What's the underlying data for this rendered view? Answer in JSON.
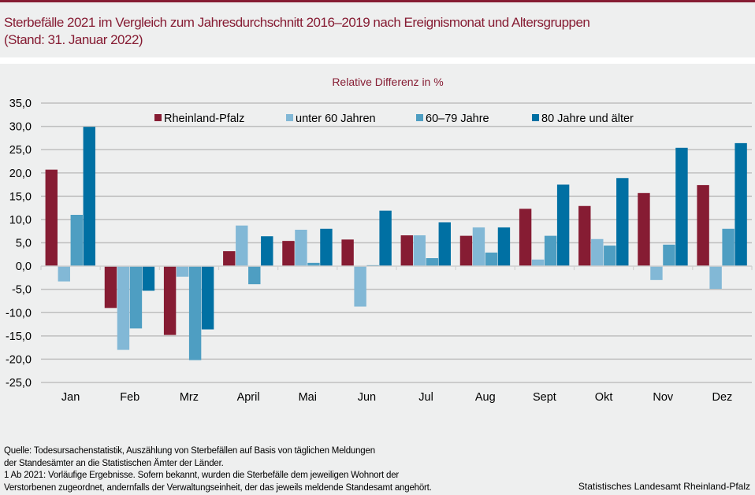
{
  "header": {
    "title_line1": "Sterbefälle 2021 im Vergleich zum Jahresdurchschnitt 2016–2019 nach Ereignismonat und Altersgruppen",
    "title_line2": "(Stand: 31. Januar 2022)"
  },
  "footer": {
    "source_lines": [
      "Quelle: Todesursachenstatistik, Auszählung von Sterbefällen auf Basis von täglichen Meldungen",
      "der Standesämter an die Statistischen Ämter der Länder.",
      "1 Ab 2021: Vorläufige Ergebnisse. Sofern bekannt, wurden die Sterbefälle dem jeweiligen Wohnort der",
      "Verstorbenen zugeordnet, andernfalls der Verwaltungseinheit, der das jeweils meldende Standesamt angehört."
    ],
    "credit": "Statistisches Landesamt Rheinland-Pfalz"
  },
  "chart_data": {
    "type": "bar",
    "title": "Relative Differenz in %",
    "xlabel": "",
    "ylabel": "",
    "ylim": [
      -25,
      35
    ],
    "yticks": [
      35,
      30,
      25,
      20,
      15,
      10,
      5,
      0,
      -5,
      -10,
      -15,
      -20,
      -25
    ],
    "ytick_labels": [
      "35,0",
      "30,0",
      "25,0",
      "20,0",
      "15,0",
      "10,0",
      "5,0",
      "0,0",
      "-5,0",
      "-10,0",
      "-15,0",
      "-20,0",
      "-25,0"
    ],
    "grid": true,
    "legend_position": "top",
    "categories": [
      "Jan",
      "Feb",
      "Mrz",
      "April",
      "Mai",
      "Jun",
      "Jul",
      "Aug",
      "Sept",
      "Okt",
      "Nov",
      "Dez"
    ],
    "series": [
      {
        "name": "Rheinland-Pfalz",
        "color": "#861c33",
        "values": [
          20.7,
          -9.0,
          -14.8,
          3.2,
          5.4,
          5.7,
          6.6,
          6.5,
          12.3,
          12.9,
          15.7,
          17.4
        ]
      },
      {
        "name": "unter 60 Jahren",
        "color": "#82b8d6",
        "values": [
          -3.3,
          -18.0,
          -2.3,
          8.7,
          7.8,
          -8.7,
          6.6,
          8.3,
          1.4,
          5.8,
          -3.0,
          -4.9
        ]
      },
      {
        "name": "60–79 Jahre",
        "color": "#4e9ec2",
        "values": [
          11.0,
          -13.4,
          -20.2,
          -3.9,
          0.7,
          0.2,
          1.7,
          2.9,
          6.5,
          4.4,
          4.6,
          8.0
        ]
      },
      {
        "name": "80 Jahre und älter",
        "color": "#0070a3",
        "values": [
          29.9,
          -5.3,
          -13.6,
          6.4,
          8.0,
          11.9,
          9.4,
          8.3,
          17.5,
          18.9,
          25.4,
          26.4
        ]
      }
    ]
  }
}
